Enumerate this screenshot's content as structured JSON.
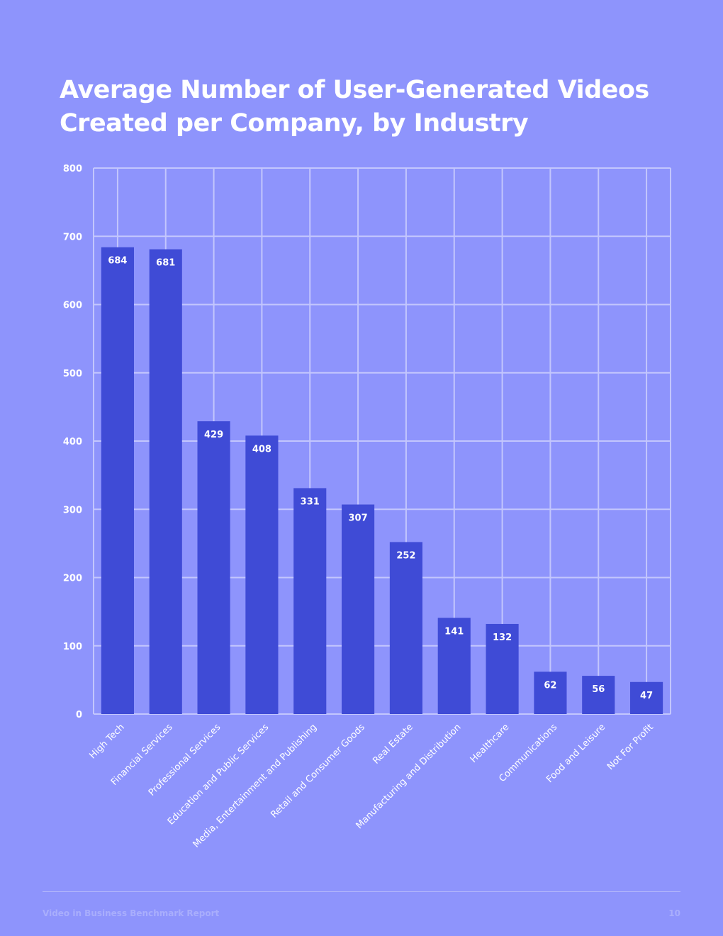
{
  "page": {
    "title_lines": [
      "Average Number of User-Generated Videos",
      "Created per Company, by Industry"
    ],
    "footer_left": "Video in Business Benchmark Report",
    "footer_right": "10"
  },
  "colors": {
    "background": "#8e94fc",
    "bar": "#3f4bd6",
    "grid": "#c3c6fd",
    "text": "#ffffff"
  },
  "chart_data": {
    "type": "bar",
    "title": "Average Number of User-Generated Videos Created per Company, by Industry",
    "xlabel": "",
    "ylabel": "",
    "ylim": [
      0,
      800
    ],
    "yticks": [
      0,
      100,
      200,
      300,
      400,
      500,
      600,
      700,
      800
    ],
    "grid": true,
    "legend": "none",
    "categories": [
      "High Tech",
      "Financial Services",
      "Professional Services",
      "Education and Public Services",
      "Media, Entertainment and Publishing",
      "Retail and Consumer Goods",
      "Real Estate",
      "Manufacturing and Distribution",
      "Healthcare",
      "Communications",
      "Food and Leisure",
      "Not For Profit"
    ],
    "values": [
      684,
      681,
      429,
      408,
      331,
      307,
      252,
      141,
      132,
      62,
      56,
      47
    ],
    "data_labels": true
  }
}
